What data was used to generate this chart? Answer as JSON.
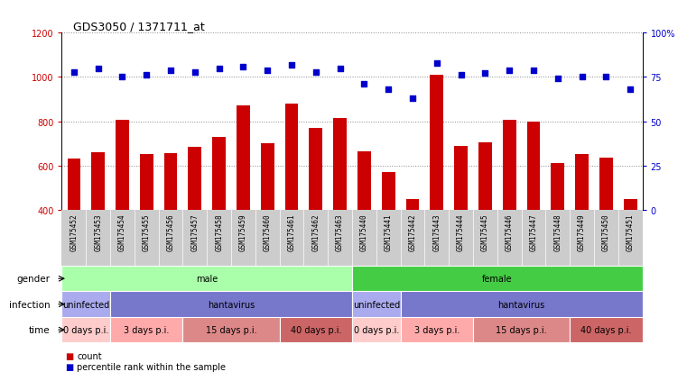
{
  "title": "GDS3050 / 1371711_at",
  "samples": [
    "GSM175452",
    "GSM175453",
    "GSM175454",
    "GSM175455",
    "GSM175456",
    "GSM175457",
    "GSM175458",
    "GSM175459",
    "GSM175460",
    "GSM175461",
    "GSM175462",
    "GSM175463",
    "GSM175440",
    "GSM175441",
    "GSM175442",
    "GSM175443",
    "GSM175444",
    "GSM175445",
    "GSM175446",
    "GSM175447",
    "GSM175448",
    "GSM175449",
    "GSM175450",
    "GSM175451"
  ],
  "counts": [
    630,
    660,
    805,
    650,
    655,
    685,
    730,
    870,
    700,
    880,
    770,
    815,
    665,
    570,
    450,
    1010,
    690,
    705,
    805,
    800,
    610,
    650,
    635,
    450
  ],
  "percentiles": [
    78,
    80,
    75,
    76,
    79,
    78,
    80,
    81,
    79,
    82,
    78,
    80,
    71,
    68,
    63,
    83,
    76,
    77,
    79,
    79,
    74,
    75,
    75,
    68
  ],
  "ylim_left": [
    400,
    1200
  ],
  "ylim_right": [
    0,
    100
  ],
  "yticks_left": [
    400,
    600,
    800,
    1000,
    1200
  ],
  "yticks_right": [
    0,
    25,
    50,
    75,
    100
  ],
  "bar_color": "#cc0000",
  "dot_color": "#0000cc",
  "grid_color": "#888888",
  "plot_bg_color": "#ffffff",
  "ticklabel_bg_color": "#cccccc",
  "gender_groups": [
    {
      "label": "male",
      "start": 0,
      "end": 12,
      "color": "#aaffaa"
    },
    {
      "label": "female",
      "start": 12,
      "end": 24,
      "color": "#44cc44"
    }
  ],
  "infection_groups": [
    {
      "label": "uninfected",
      "start": 0,
      "end": 2,
      "color": "#aaaaee"
    },
    {
      "label": "hantavirus",
      "start": 2,
      "end": 12,
      "color": "#7777cc"
    },
    {
      "label": "uninfected",
      "start": 12,
      "end": 14,
      "color": "#aaaaee"
    },
    {
      "label": "hantavirus",
      "start": 14,
      "end": 24,
      "color": "#7777cc"
    }
  ],
  "time_groups": [
    {
      "label": "0 days p.i.",
      "start": 0,
      "end": 2,
      "color": "#ffcccc"
    },
    {
      "label": "3 days p.i.",
      "start": 2,
      "end": 5,
      "color": "#ffaaaa"
    },
    {
      "label": "15 days p.i.",
      "start": 5,
      "end": 9,
      "color": "#dd8888"
    },
    {
      "label": "40 days p.i.",
      "start": 9,
      "end": 12,
      "color": "#cc6666"
    },
    {
      "label": "0 days p.i.",
      "start": 12,
      "end": 14,
      "color": "#ffcccc"
    },
    {
      "label": "3 days p.i.",
      "start": 14,
      "end": 17,
      "color": "#ffaaaa"
    },
    {
      "label": "15 days p.i.",
      "start": 17,
      "end": 21,
      "color": "#dd8888"
    },
    {
      "label": "40 days p.i.",
      "start": 21,
      "end": 24,
      "color": "#cc6666"
    }
  ],
  "row_labels": [
    "gender",
    "infection",
    "time"
  ],
  "legend_items": [
    {
      "label": "count",
      "color": "#cc0000"
    },
    {
      "label": "percentile rank within the sample",
      "color": "#0000cc"
    }
  ]
}
